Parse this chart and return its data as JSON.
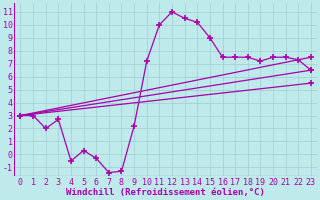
{
  "background_color": "#beeaec",
  "grid_color": "#9dcdd0",
  "line_color": "#aa00aa",
  "marker": "+",
  "markersize": 4,
  "linewidth": 0.9,
  "markeredgewidth": 1.2,
  "xlabel": "Windchill (Refroidissement éolien,°C)",
  "xlabel_fontsize": 6.5,
  "tick_fontsize": 6.0,
  "xlim": [
    -0.5,
    23.5
  ],
  "ylim": [
    -1.7,
    11.7
  ],
  "xticks": [
    0,
    1,
    2,
    3,
    4,
    5,
    6,
    7,
    8,
    9,
    10,
    11,
    12,
    13,
    14,
    15,
    16,
    17,
    18,
    19,
    20,
    21,
    22,
    23
  ],
  "yticks": [
    -1,
    0,
    1,
    2,
    3,
    4,
    5,
    6,
    7,
    8,
    9,
    10,
    11
  ],
  "series": [
    {
      "x": [
        0,
        1,
        2,
        3,
        4,
        5,
        6,
        7,
        8,
        9,
        10,
        11,
        12,
        13,
        14,
        15,
        16,
        17,
        18,
        19,
        20,
        21,
        22,
        23
      ],
      "y": [
        3.0,
        3.0,
        2.0,
        2.7,
        -0.5,
        0.3,
        -0.3,
        -1.4,
        -1.3,
        2.2,
        7.2,
        10.0,
        11.0,
        10.5,
        10.2,
        9.0,
        7.5,
        7.5,
        7.5,
        7.2,
        7.5,
        7.5,
        7.3,
        6.5
      ]
    },
    {
      "x": [
        0,
        23
      ],
      "y": [
        3.0,
        7.5
      ]
    },
    {
      "x": [
        0,
        23
      ],
      "y": [
        3.0,
        6.5
      ]
    },
    {
      "x": [
        0,
        23
      ],
      "y": [
        3.0,
        5.5
      ]
    }
  ]
}
